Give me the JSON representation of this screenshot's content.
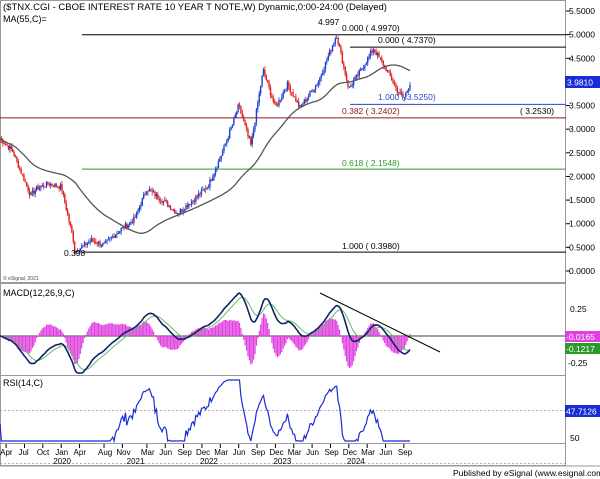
{
  "header": {
    "title": "($TNX.CGI - CBOE INTEREST RATE 10 YEAR T NOTE,W) Dynamic,0:00-24:00 (Delayed)",
    "ma_label": "MA(55,C)=",
    "copyright": "© eSignal, 2021"
  },
  "footer": {
    "published": "Published by eSignal (www.esignal.com)"
  },
  "colors": {
    "up_candle": "#1a3fd1",
    "down_candle": "#e0201e",
    "ma_line": "#555555",
    "fib_black": "#000000",
    "fib_red": "#8b1a1a",
    "fib_green": "#2e9a2e",
    "fib_blue": "#2a46c8",
    "macd_line": "#12226b",
    "macd_signal": "#66bb66",
    "macd_hist": "#e040e0",
    "rsi_line": "#1a2bd8",
    "last_price_bg": "#1a2bd8",
    "last_macd_bg": "#e040e0",
    "last_signal_bg": "#2a9a2a"
  },
  "price_panel": {
    "y_ticks": [
      "5.5000",
      "5.0000",
      "4.5000",
      "4.0000",
      "3.5000",
      "3.0000",
      "2.5000",
      "2.0000",
      "1.5000",
      "1.0000",
      "0.5000",
      "0.0000"
    ],
    "last_price": "3.9810",
    "high_label": "4.997",
    "low_label": "0.398",
    "fib_labels": {
      "fib_top_a": "0.000 ( 4.9970)",
      "fib_top_b": "0.000 ( 4.7370)",
      "fib_blue": "1.000 ( 3.5250)",
      "fib_red": "0.382 ( 3.2402)",
      "fib_red_right": "( 3.2530)",
      "fib_green": "0.618 ( 2.1548)",
      "fib_bottom": "1.000 ( 0.3980)"
    }
  },
  "macd_panel": {
    "label": "MACD(12,26,9,C)",
    "y_ticks": [
      "0.25",
      "-0.25"
    ],
    "macd_value": "-0.0165",
    "signal_value": "-0.1217"
  },
  "rsi_panel": {
    "label": "RSI(14,C)",
    "y_ticks": [
      "50"
    ],
    "value": "47.7126"
  },
  "x_axis": {
    "months": [
      "Apr",
      "Jul",
      "Oct",
      "Jan",
      "Apr",
      "Aug",
      "Nov",
      "Mar",
      "Jun",
      "Sep",
      "Dec",
      "Mar",
      "Jun",
      "Sep",
      "Dec",
      "Mar",
      "Jun",
      "Sep",
      "Dec",
      "Mar",
      "Jun",
      "Sep"
    ],
    "years": [
      "2020",
      "2021",
      "2022",
      "2023",
      "2024"
    ]
  },
  "chart_data": {
    "type": "candlestick",
    "title": "($TNX.CGI - CBOE INTEREST RATE 10 YEAR T NOTE,W) Dynamic,0:00-24:00 (Delayed)",
    "ylim": [
      0,
      5.5
    ],
    "ma_period": 55,
    "price_anchors": [
      [
        "2019-03",
        2.8
      ],
      [
        "2019-05",
        2.55
      ],
      [
        "2019-08",
        1.6
      ],
      [
        "2019-09",
        1.75
      ],
      [
        "2019-11",
        1.85
      ],
      [
        "2020-01",
        1.78
      ],
      [
        "2020-03",
        0.65
      ],
      [
        "2020-03",
        0.398
      ],
      [
        "2020-06",
        0.65
      ],
      [
        "2020-08",
        0.55
      ],
      [
        "2020-10",
        0.8
      ],
      [
        "2021-01",
        1.1
      ],
      [
        "2021-03",
        1.74
      ],
      [
        "2021-06",
        1.45
      ],
      [
        "2021-08",
        1.22
      ],
      [
        "2021-11",
        1.55
      ],
      [
        "2022-01",
        1.8
      ],
      [
        "2022-03",
        2.4
      ],
      [
        "2022-05",
        3.1
      ],
      [
        "2022-06",
        3.5
      ],
      [
        "2022-08",
        2.65
      ],
      [
        "2022-10",
        4.25
      ],
      [
        "2022-12",
        3.45
      ],
      [
        "2023-02",
        3.95
      ],
      [
        "2023-04",
        3.45
      ],
      [
        "2023-07",
        4.0
      ],
      [
        "2023-10",
        4.997
      ],
      [
        "2023-12",
        3.85
      ],
      [
        "2024-02",
        4.25
      ],
      [
        "2024-04",
        4.7
      ],
      [
        "2024-06",
        4.3
      ],
      [
        "2024-08",
        3.8
      ],
      [
        "2024-09",
        3.65
      ],
      [
        "2024-10",
        3.98
      ]
    ],
    "fib_levels": [
      {
        "ratio": "0.000",
        "value": 4.997
      },
      {
        "ratio": "0.000",
        "value": 4.737
      },
      {
        "ratio": "1.000",
        "value": 3.525
      },
      {
        "ratio": "0.382",
        "value": 3.2402
      },
      {
        "ratio": "0.618",
        "value": 2.1548
      },
      {
        "ratio": "1.000",
        "value": 0.398
      }
    ],
    "horizontal_level": 3.253,
    "last_close": 3.981,
    "macd": {
      "last": -0.0165,
      "signal_last": -0.1217,
      "ylim": [
        -0.4,
        0.4
      ]
    },
    "rsi": {
      "last": 47.7126,
      "ylim": [
        20,
        80
      ]
    }
  }
}
